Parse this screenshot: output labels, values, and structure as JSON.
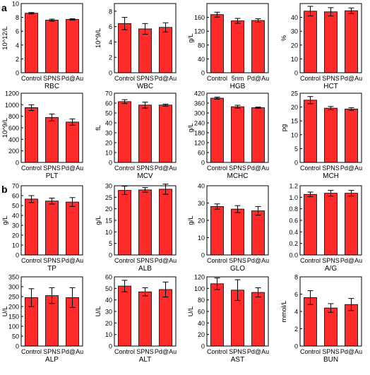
{
  "sections": [
    "a",
    "b"
  ],
  "colors": {
    "bar": "#ff2a2a",
    "bar_edge": "#000000",
    "axis": "#000000"
  },
  "chart_data": [
    {
      "type": "bar",
      "title": "",
      "xlabel": "RBC",
      "ylabel": "10^12/L",
      "categories": [
        "Control",
        "SPNS",
        "Pd@Au"
      ],
      "values": [
        8.6,
        7.6,
        7.7
      ],
      "errors": [
        0.1,
        0.15,
        0.1
      ],
      "ylim": [
        0,
        10
      ],
      "yticks": [
        "0",
        "2",
        "4",
        "6",
        "8",
        "10"
      ]
    },
    {
      "type": "bar",
      "title": "",
      "xlabel": "WBC",
      "ylabel": "10^9/L",
      "categories": [
        "Control",
        "SPNS",
        "Pd@Au"
      ],
      "values": [
        6.4,
        5.7,
        5.9
      ],
      "errors": [
        0.8,
        0.7,
        0.6
      ],
      "ylim": [
        0,
        9
      ],
      "yticks": [
        "0",
        "2",
        "4",
        "6",
        "8"
      ]
    },
    {
      "type": "bar",
      "title": "",
      "xlabel": "HGB",
      "ylabel": "g/L",
      "categories": [
        "Control",
        "5nm",
        "Pd@Au"
      ],
      "values": [
        168,
        150,
        151
      ],
      "errors": [
        7,
        7,
        5
      ],
      "ylim": [
        0,
        200
      ],
      "yticks": [
        "0",
        "40",
        "80",
        "120",
        "160"
      ]
    },
    {
      "type": "bar",
      "title": "",
      "xlabel": "HCT",
      "ylabel": "%",
      "categories": [
        "Control",
        "SPNS",
        "Pd@Au"
      ],
      "values": [
        44.5,
        44,
        44.8
      ],
      "errors": [
        3.5,
        3,
        2
      ],
      "ylim": [
        0,
        50
      ],
      "yticks": [
        "0",
        "10",
        "20",
        "30",
        "40"
      ]
    },
    {
      "type": "bar",
      "title": "",
      "xlabel": "PLT",
      "ylabel": "10^9/L",
      "categories": [
        "Control",
        "SPNS",
        "Pd@Au"
      ],
      "values": [
        950,
        780,
        700
      ],
      "errors": [
        50,
        60,
        55
      ],
      "ylim": [
        0,
        1200
      ],
      "yticks": [
        "0",
        "200",
        "400",
        "600",
        "800",
        "1000",
        "1200"
      ]
    },
    {
      "type": "bar",
      "title": "",
      "xlabel": "MCV",
      "ylabel": "fL",
      "categories": [
        "Control",
        "SPNS",
        "Pd@Au"
      ],
      "values": [
        61.5,
        58,
        58
      ],
      "errors": [
        2,
        3,
        1
      ],
      "ylim": [
        0,
        70
      ],
      "yticks": [
        "0",
        "10",
        "20",
        "30",
        "40",
        "50",
        "60",
        "70"
      ]
    },
    {
      "type": "bar",
      "title": "",
      "xlabel": "MCHC",
      "ylabel": "g/L",
      "categories": [
        "Control",
        "SPNS",
        "Pd@Au"
      ],
      "values": [
        390,
        338,
        332
      ],
      "errors": [
        6,
        9,
        4
      ],
      "ylim": [
        0,
        420
      ],
      "yticks": [
        "0",
        "60",
        "120",
        "180",
        "240",
        "300",
        "360",
        "420"
      ]
    },
    {
      "type": "bar",
      "title": "",
      "xlabel": "MCH",
      "ylabel": "pg",
      "categories": [
        "Control",
        "SPNS",
        "Pd@Au"
      ],
      "values": [
        22.5,
        19.6,
        19.3
      ],
      "errors": [
        1.3,
        0.6,
        0.5
      ],
      "ylim": [
        0,
        25
      ],
      "yticks": [
        "0",
        "5",
        "10",
        "15",
        "20",
        "25"
      ]
    },
    {
      "type": "bar",
      "title": "",
      "xlabel": "TP",
      "ylabel": "g/L",
      "categories": [
        "Control",
        "SPNS",
        "Pd@Au"
      ],
      "values": [
        56.5,
        54.5,
        53.5
      ],
      "errors": [
        3.5,
        3,
        4.5
      ],
      "ylim": [
        0,
        70
      ],
      "yticks": [
        "0",
        "10",
        "20",
        "30",
        "40",
        "50",
        "60",
        "70"
      ]
    },
    {
      "type": "bar",
      "title": "",
      "xlabel": "ALB",
      "ylabel": "g/L",
      "categories": [
        "Control",
        "SPNS",
        "Pd@Au"
      ],
      "values": [
        28,
        28.2,
        28.5
      ],
      "errors": [
        1.8,
        1,
        2.2
      ],
      "ylim": [
        0,
        30
      ],
      "yticks": [
        "0",
        "5",
        "10",
        "15",
        "20",
        "25",
        "30"
      ]
    },
    {
      "type": "bar",
      "title": "",
      "xlabel": "GLO",
      "ylabel": "g/L",
      "categories": [
        "Control",
        "SPNS",
        "Pd@Au"
      ],
      "values": [
        28,
        26.5,
        25.5
      ],
      "errors": [
        1.5,
        2,
        2.5
      ],
      "ylim": [
        0,
        40
      ],
      "yticks": [
        "0",
        "10",
        "20",
        "30",
        "40"
      ]
    },
    {
      "type": "bar",
      "title": "",
      "xlabel": "A/G",
      "ylabel": "",
      "categories": [
        "Control",
        "SPNS",
        "Pd@Au"
      ],
      "values": [
        1.05,
        1.07,
        1.07
      ],
      "errors": [
        0.04,
        0.05,
        0.05
      ],
      "ylim": [
        0,
        1.2
      ],
      "yticks": [
        "0.0",
        "0.2",
        "0.4",
        "0.6",
        "0.8",
        "1.0",
        "1.2"
      ]
    },
    {
      "type": "bar",
      "title": "",
      "xlabel": "ALP",
      "ylabel": "U/L",
      "categories": [
        "Control",
        "SPNS",
        "Pd@Au"
      ],
      "values": [
        245,
        255,
        245
      ],
      "errors": [
        45,
        40,
        50
      ],
      "ylim": [
        0,
        350
      ],
      "yticks": [
        "0",
        "50",
        "100",
        "150",
        "200",
        "250",
        "300",
        "350"
      ]
    },
    {
      "type": "bar",
      "title": "",
      "xlabel": "ALT",
      "ylabel": "U/L",
      "categories": [
        "Control",
        "SPNS",
        "Pd@Au"
      ],
      "values": [
        52,
        47,
        49
      ],
      "errors": [
        5,
        3.5,
        6.5
      ],
      "ylim": [
        0,
        60
      ],
      "yticks": [
        "0",
        "10",
        "20",
        "30",
        "40",
        "50",
        "60"
      ]
    },
    {
      "type": "bar",
      "title": "",
      "xlabel": "AST",
      "ylabel": "U/L",
      "categories": [
        "Control",
        "SPNS",
        "Pd@Au"
      ],
      "values": [
        108,
        97,
        93
      ],
      "errors": [
        10,
        18,
        8
      ],
      "ylim": [
        0,
        120
      ],
      "yticks": [
        "0",
        "20",
        "40",
        "60",
        "80",
        "100",
        "120"
      ]
    },
    {
      "type": "bar",
      "title": "",
      "xlabel": "BUN",
      "ylabel": "mmol/L",
      "categories": [
        "Control",
        "SPNS",
        "Pd@Au"
      ],
      "values": [
        5.6,
        4.4,
        4.8
      ],
      "errors": [
        0.8,
        0.5,
        0.7
      ],
      "ylim": [
        0,
        8
      ],
      "yticks": [
        "0",
        "2",
        "4",
        "6",
        "8"
      ]
    }
  ]
}
